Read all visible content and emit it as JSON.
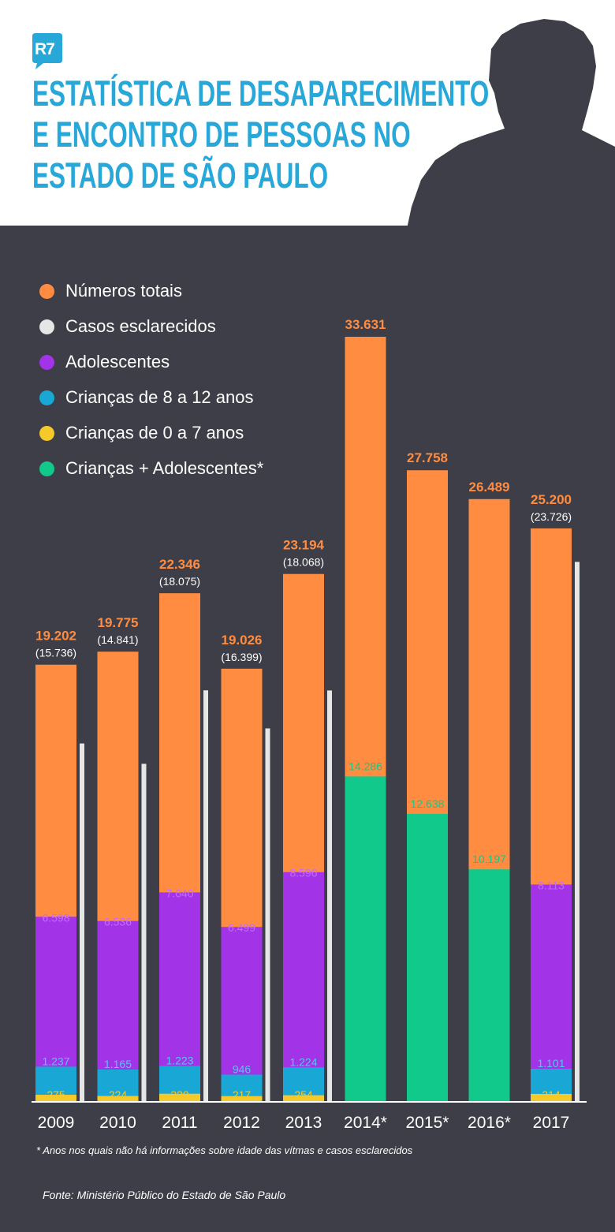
{
  "brand": {
    "logo_text": "R7"
  },
  "title": {
    "lines": [
      "ESTATÍSTICA DE DESAPARECIMENTO",
      "E ENCONTRO DE PESSOAS NO",
      "ESTADO DE SÃO PAULO"
    ]
  },
  "colors": {
    "background": "#3d3e47",
    "title": "#27a8d9",
    "totals": "#ff8c40",
    "solved": "#e6e6e6",
    "adolescents": "#a233e6",
    "children_8_12": "#19a8d6",
    "children_0_7": "#f5c92a",
    "children_plus_adolescents": "#10c98a"
  },
  "legend": [
    {
      "label": "Números totais",
      "color": "#ff8c40"
    },
    {
      "label": "Casos esclarecidos",
      "color": "#e6e6e6"
    },
    {
      "label": "Adolescentes",
      "color": "#a233e6"
    },
    {
      "label": "Crianças de 8 a 12 anos",
      "color": "#19a8d6"
    },
    {
      "label": "Crianças de 0 a 7 anos",
      "color": "#f5c92a"
    },
    {
      "label": "Crianças + Adolescentes*",
      "color": "#10c98a"
    }
  ],
  "chart_data": {
    "type": "bar",
    "title": "Estatística de desaparecimento e encontro de pessoas no Estado de São Paulo",
    "categories": [
      "2009",
      "2010",
      "2011",
      "2012",
      "2013",
      "2014*",
      "2015*",
      "2016*",
      "2017"
    ],
    "series": [
      {
        "name": "Números totais",
        "values": [
          19202,
          19775,
          22346,
          19026,
          23194,
          33631,
          27758,
          26489,
          25200
        ],
        "labels": [
          "19.202",
          "19.775",
          "22.346",
          "19.026",
          "23.194",
          "33.631",
          "27.758",
          "26.489",
          "25.200"
        ]
      },
      {
        "name": "Casos esclarecidos",
        "values": [
          15736,
          14841,
          18075,
          16399,
          18068,
          null,
          null,
          null,
          23726
        ],
        "labels": [
          "(15.736)",
          "(14.841)",
          "(18.075)",
          "(16.399)",
          "(18.068)",
          null,
          null,
          null,
          "(23.726)"
        ]
      },
      {
        "name": "Adolescentes",
        "values": [
          6598,
          6536,
          7640,
          6499,
          8596,
          null,
          null,
          null,
          8113
        ],
        "labels": [
          "6.598",
          "6.536",
          "7.640",
          "6.499",
          "8.596",
          null,
          null,
          null,
          "8.113"
        ]
      },
      {
        "name": "Crianças de 8 a 12 anos",
        "values": [
          1237,
          1165,
          1223,
          946,
          1224,
          null,
          null,
          null,
          1101
        ],
        "labels": [
          "1.237",
          "1.165",
          "1.223",
          "946",
          "1.224",
          null,
          null,
          null,
          "1.101"
        ]
      },
      {
        "name": "Crianças de 0 a 7 anos",
        "values": [
          275,
          224,
          320,
          217,
          254,
          null,
          null,
          null,
          314
        ],
        "labels": [
          "275",
          "224",
          "320",
          "217",
          "254",
          null,
          null,
          null,
          "314"
        ]
      },
      {
        "name": "Crianças + Adolescentes*",
        "values": [
          null,
          null,
          null,
          null,
          null,
          14286,
          12638,
          10197,
          null
        ],
        "labels": [
          null,
          null,
          null,
          null,
          null,
          "14.286",
          "12.638",
          "10.197",
          null
        ]
      }
    ],
    "ylim": [
      0,
      33631
    ],
    "xlabel": "",
    "ylabel": "",
    "grid": false
  },
  "footnote": "* Anos nos quais não há informações sobre idade das vítmas e casos esclarecidos",
  "source": "Fonte: Ministério Público do Estado de São Paulo"
}
